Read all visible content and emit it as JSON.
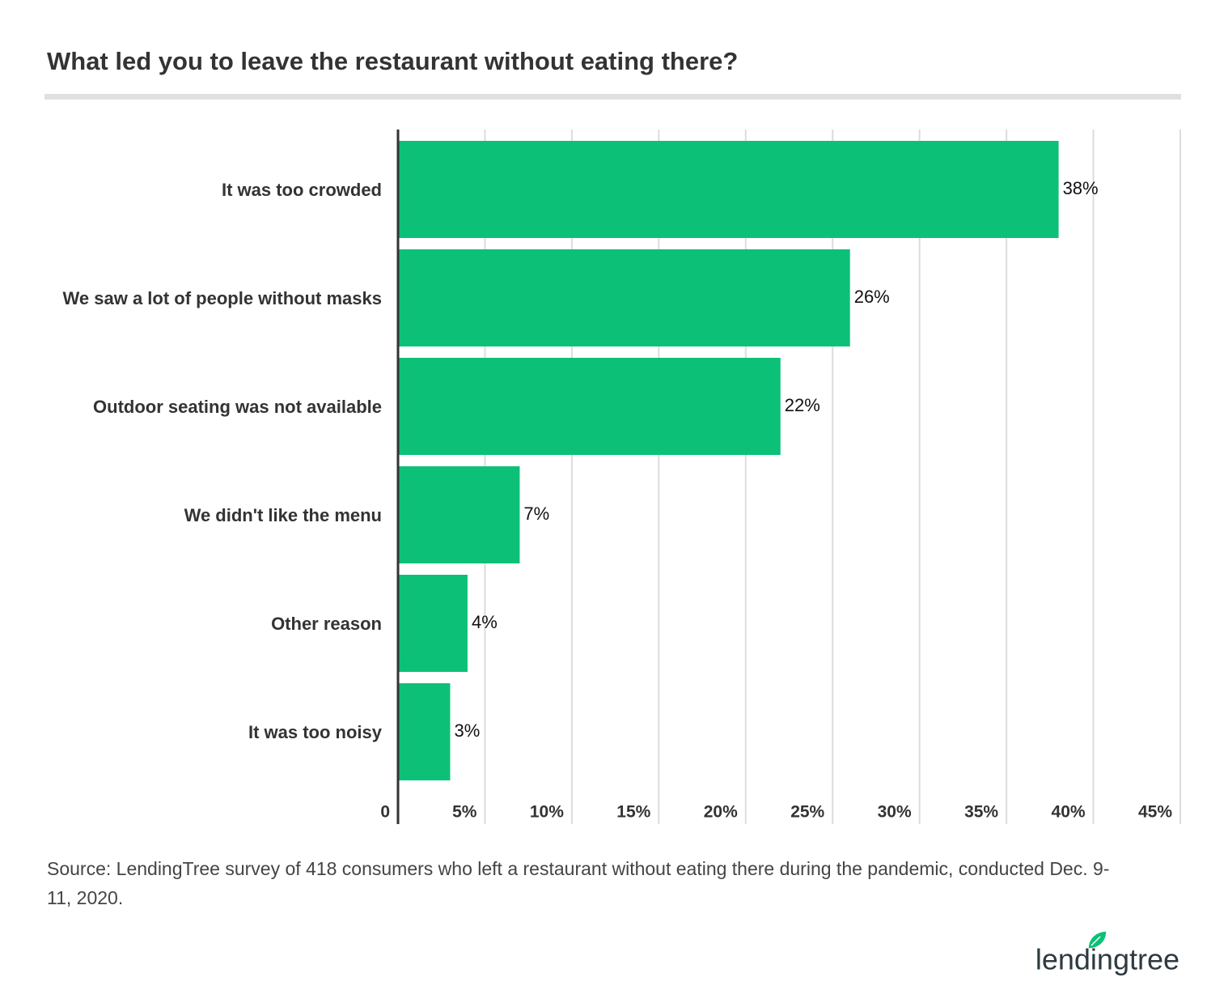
{
  "chart_data": {
    "type": "bar",
    "orientation": "horizontal",
    "title": "What led you to leave the restaurant without eating there?",
    "categories": [
      "It was too crowded",
      "We saw a lot of people without masks",
      "Outdoor seating was not available",
      "We didn't like the menu",
      "Other reason",
      "It was too noisy"
    ],
    "values": [
      38,
      26,
      22,
      7,
      4,
      3
    ],
    "value_labels": [
      "38%",
      "26%",
      "22%",
      "7%",
      "4%",
      "3%"
    ],
    "color": "#0cc177",
    "xlim": [
      0,
      45
    ],
    "xticks": [
      0,
      {
        "value": 5,
        "label": "5%"
      },
      {
        "value": 10,
        "label": "10%"
      },
      {
        "value": 15,
        "label": "15%"
      },
      {
        "value": 20,
        "label": "20%"
      },
      {
        "value": 25,
        "label": "25%"
      },
      {
        "value": 30,
        "label": "30%"
      },
      {
        "value": 35,
        "label": "35%"
      },
      {
        "value": 40,
        "label": "40%"
      },
      {
        "value": 45,
        "label": "45%"
      }
    ],
    "grid": true,
    "source": "Source: LendingTree survey of 418 consumers who left a restaurant without eating there during the pandemic, conducted Dec. 9-11, 2020.",
    "logo": "lendingtree"
  }
}
